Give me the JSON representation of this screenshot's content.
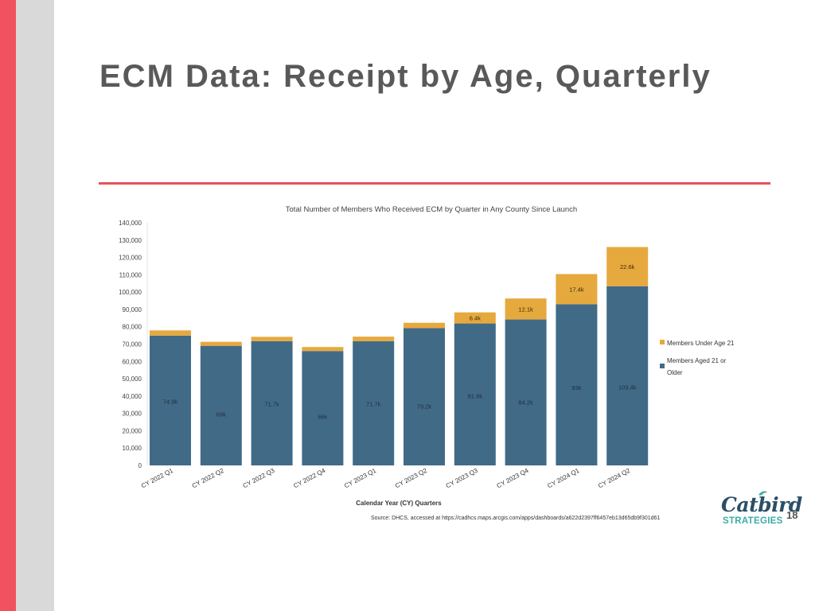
{
  "slide": {
    "title": "ECM Data: Receipt by Age, Quarterly",
    "source": "Source: DHCS, accessed at https://cadhcs.maps.arcgis.com/apps/dashboards/a622d2397ff6457eb13d65db9f301d61",
    "logo_top": "Catbird",
    "logo_bottom": "STRATEGIES",
    "page_number": "18",
    "colors": {
      "accent_red": "#f0525f",
      "side_gray": "#d9d9d9",
      "title_rule": "#e8505b"
    }
  },
  "chart_data": {
    "type": "bar",
    "stacked": true,
    "title": "Total Number of Members Who Received ECM by Quarter in Any County Since Launch",
    "xlabel": "Calendar Year (CY) Quarters",
    "ylabel": "",
    "ylim": [
      0,
      140000
    ],
    "yticks": [
      0,
      10000,
      20000,
      30000,
      40000,
      50000,
      60000,
      70000,
      80000,
      90000,
      100000,
      110000,
      120000,
      130000,
      140000
    ],
    "ytick_labels": [
      "0",
      "10,000",
      "20,000",
      "30,000",
      "40,000",
      "50,000",
      "60,000",
      "70,000",
      "80,000",
      "90,000",
      "100,000",
      "110,000",
      "120,000",
      "130,000",
      "140,000"
    ],
    "categories": [
      "CY 2022 Q1",
      "CY 2022 Q2",
      "CY 2022 Q3",
      "CY 2022 Q4",
      "CY 2023 Q1",
      "CY 2023 Q2",
      "CY 2023 Q3",
      "CY 2023 Q4",
      "CY 2024 Q1",
      "CY 2024 Q2"
    ],
    "series": [
      {
        "name": "Members Aged 21 or Older",
        "color": "#416a87",
        "values": [
          74900,
          69000,
          71700,
          66000,
          71700,
          79200,
          81900,
          84200,
          93000,
          103400
        ],
        "labels": [
          "74.9k",
          "69k",
          "71.7k",
          "66k",
          "71.7k",
          "79.2k",
          "81.9k",
          "84.2k",
          "93k",
          "103.4k"
        ]
      },
      {
        "name": "Members Under Age 21",
        "color": "#e6a93e",
        "values": [
          3000,
          2300,
          2500,
          2300,
          2600,
          3100,
          6400,
          12100,
          17400,
          22600
        ],
        "labels": [
          "",
          "",
          "",
          "",
          "",
          "",
          "6.4k",
          "12.1k",
          "17.4k",
          "22.6k"
        ]
      }
    ],
    "legend": {
      "position": "right",
      "entries": [
        "Members Under Age 21",
        "Members Aged 21 or Older"
      ]
    },
    "grid": false
  }
}
